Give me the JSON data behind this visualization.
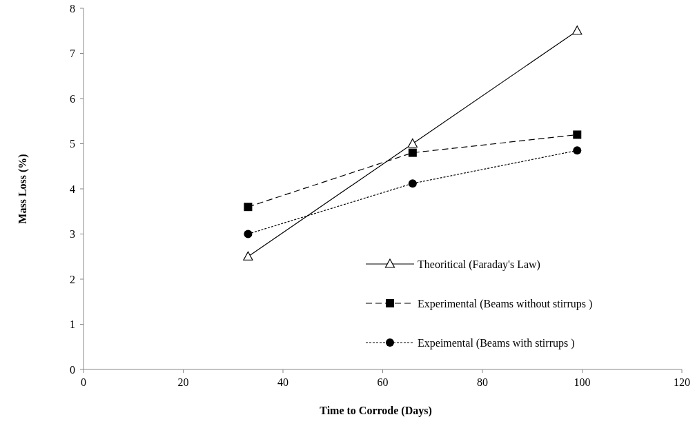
{
  "chart_data": {
    "type": "line",
    "xlabel": "Time to Corrode (Days)",
    "ylabel": "Mass Loss (%)",
    "xlim": [
      0,
      120
    ],
    "xticks": [
      0,
      20,
      40,
      60,
      80,
      100,
      120
    ],
    "ylim": [
      0,
      8
    ],
    "yticks": [
      0,
      1,
      2,
      3,
      4,
      5,
      6,
      7,
      8
    ],
    "grid": false,
    "legend": "bottom right",
    "series": [
      {
        "name": "Theoritical (Faraday's Law)",
        "color": "#000000",
        "marker": "triangle",
        "line_style": "solid",
        "x": [
          33,
          66,
          99
        ],
        "values": [
          2.5,
          5,
          7.5
        ]
      },
      {
        "name": "Experimental (Beams without stirrups )",
        "color": "#000000",
        "marker": "square",
        "line_style": "dashed",
        "x": [
          33,
          66,
          99
        ],
        "values": [
          3.6,
          4.8,
          5.2
        ]
      },
      {
        "name": "Expeimental (Beams with stirrups )",
        "color": "#000000",
        "marker": "circle",
        "line_style": "dotted",
        "x": [
          33,
          66,
          99
        ],
        "values": [
          3.0,
          4.12,
          4.85
        ]
      }
    ]
  }
}
